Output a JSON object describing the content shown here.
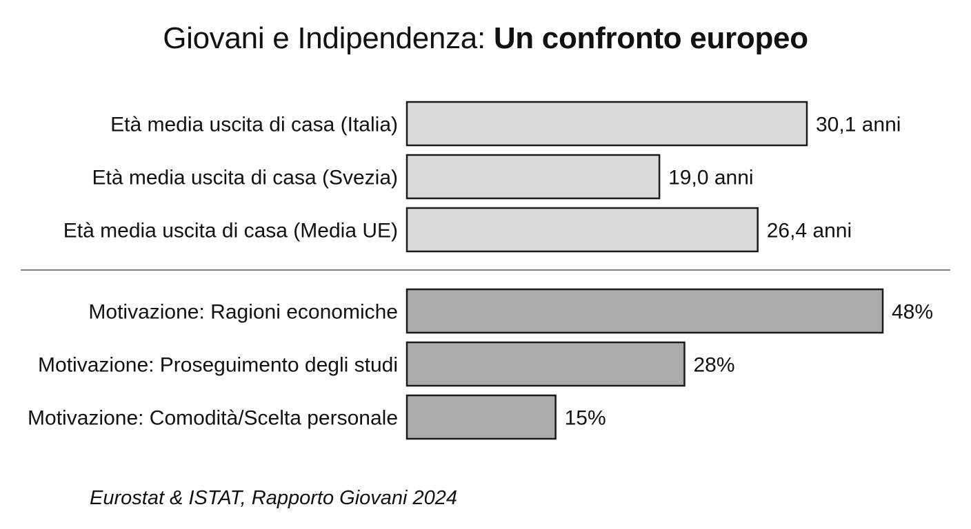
{
  "title": {
    "regular": "Giovani e Indipendenza: ",
    "bold": "Un confronto europeo"
  },
  "source": "Eurostat & ISTAT, Rapporto Giovani 2024",
  "colors": {
    "group_1_fill": "#d9d9d9",
    "group_2_fill": "#ababab",
    "bar_stroke": "#1a1a1a",
    "divider": "#555555"
  },
  "chart_data": {
    "type": "bar",
    "orientation": "horizontal",
    "title": "Giovani e Indipendenza: Un confronto europeo",
    "groups": [
      {
        "categories": [
          "Età media uscita di casa (Italia)",
          "Età media uscita di casa (Svezia)",
          "Età media uscita di casa (Media UE)"
        ],
        "values": [
          30.1,
          19.0,
          26.4
        ],
        "value_labels": [
          "30,1 anni",
          "19,0 anni",
          "26,4 anni"
        ],
        "unit": "anni",
        "color": "#d9d9d9"
      },
      {
        "categories": [
          "Motivazione: Ragioni economiche",
          "Motivazione: Proseguimento degli studi",
          "Motivazione: Comodità/Scelta personale"
        ],
        "values": [
          48,
          28,
          15
        ],
        "value_labels": [
          "48%",
          "28%",
          "15%"
        ],
        "unit": "%",
        "color": "#ababab"
      }
    ],
    "grid": false,
    "legend": "none"
  }
}
